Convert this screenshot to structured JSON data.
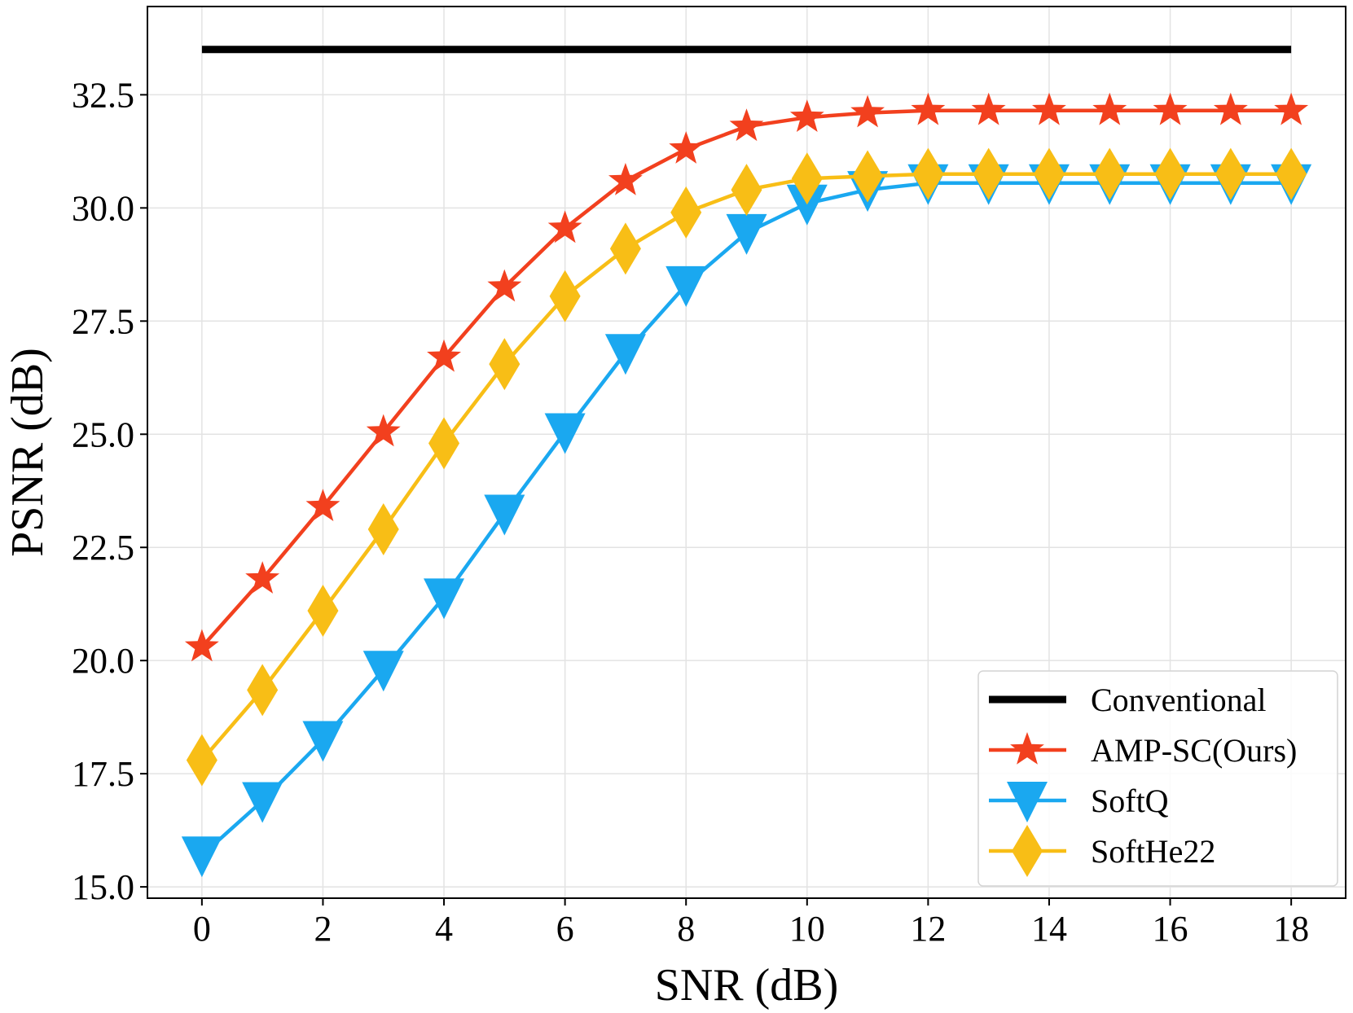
{
  "chart_data": {
    "type": "line",
    "title": "",
    "xlabel": "SNR (dB)",
    "ylabel": "PSNR (dB)",
    "xlim": [
      -0.9,
      18.9
    ],
    "ylim": [
      14.75,
      34.45
    ],
    "xticks": [
      0,
      2,
      4,
      6,
      8,
      10,
      12,
      14,
      16,
      18
    ],
    "xtick_labels": [
      "0",
      "2",
      "4",
      "6",
      "8",
      "10",
      "12",
      "14",
      "16",
      "18"
    ],
    "yticks": [
      15.0,
      17.5,
      20.0,
      22.5,
      25.0,
      27.5,
      30.0,
      32.5
    ],
    "ytick_labels": [
      "15.0",
      "17.5",
      "20.0",
      "22.5",
      "25.0",
      "27.5",
      "30.0",
      "32.5"
    ],
    "grid": true,
    "legend_position": "lower-right",
    "x": [
      0,
      1,
      2,
      3,
      4,
      5,
      6,
      7,
      8,
      9,
      10,
      11,
      12,
      13,
      14,
      15,
      16,
      17,
      18
    ],
    "series": [
      {
        "name": "Conventional",
        "color": "#000000",
        "marker": "none",
        "x": [
          0,
          18
        ],
        "values": [
          33.5,
          33.5
        ]
      },
      {
        "name": "AMP-SC(Ours)",
        "color": "#f2401e",
        "marker": "star",
        "values": [
          20.3,
          21.8,
          23.4,
          25.05,
          26.7,
          28.25,
          29.55,
          30.6,
          31.3,
          31.8,
          32.0,
          32.1,
          32.15,
          32.15,
          32.15,
          32.15,
          32.15,
          32.15,
          32.15
        ]
      },
      {
        "name": "SoftQ",
        "color": "#1aa8f0",
        "marker": "triangle-down",
        "values": [
          15.7,
          16.9,
          18.25,
          19.8,
          21.4,
          23.25,
          25.05,
          26.8,
          28.3,
          29.45,
          30.1,
          30.4,
          30.55,
          30.55,
          30.55,
          30.55,
          30.55,
          30.55,
          30.55
        ]
      },
      {
        "name": "SoftHe22",
        "color": "#f8be16",
        "marker": "diamond",
        "values": [
          17.8,
          19.35,
          21.1,
          22.9,
          24.8,
          26.55,
          28.05,
          29.1,
          29.9,
          30.4,
          30.65,
          30.7,
          30.75,
          30.75,
          30.75,
          30.75,
          30.75,
          30.75,
          30.75
        ]
      }
    ]
  }
}
